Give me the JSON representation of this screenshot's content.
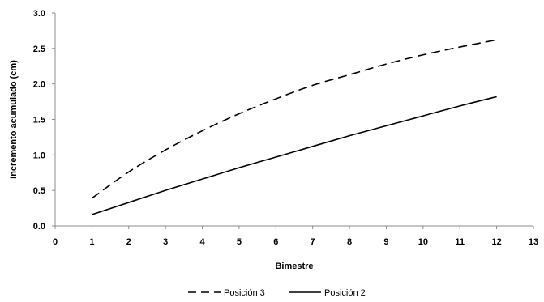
{
  "chart_data": {
    "type": "line",
    "title": "",
    "xlabel": "Bimestre",
    "ylabel": "Incremento acumulado (cm)",
    "xlim": [
      0,
      13
    ],
    "ylim": [
      0,
      3.0
    ],
    "x_ticks": [
      0,
      1,
      2,
      3,
      4,
      5,
      6,
      7,
      8,
      9,
      10,
      11,
      12,
      13
    ],
    "x_tick_labels": [
      "0",
      "1",
      "2",
      "3",
      "4",
      "5",
      "6",
      "7",
      "8",
      "9",
      "10",
      "11",
      "12",
      "13"
    ],
    "y_ticks": [
      0,
      0.5,
      1.0,
      1.5,
      2.0,
      2.5,
      3.0
    ],
    "y_tick_labels": [
      "0.0",
      "0.5",
      "1.0",
      "1.5",
      "2.0",
      "2.5",
      "3.0"
    ],
    "grid": false,
    "legend_position": "bottom",
    "series": [
      {
        "name": "Posición 3",
        "style": "dashed",
        "color": "#000000",
        "x": [
          1,
          2,
          3,
          4,
          5,
          6,
          7,
          8,
          9,
          10,
          11,
          12
        ],
        "y": [
          0.39,
          0.76,
          1.07,
          1.34,
          1.58,
          1.79,
          1.98,
          2.13,
          2.28,
          2.41,
          2.52,
          2.62
        ]
      },
      {
        "name": "Posición 2",
        "style": "solid",
        "color": "#000000",
        "x": [
          1,
          2,
          3,
          4,
          5,
          6,
          7,
          8,
          9,
          10,
          11,
          12
        ],
        "y": [
          0.16,
          0.33,
          0.5,
          0.66,
          0.82,
          0.97,
          1.12,
          1.27,
          1.41,
          1.55,
          1.69,
          1.82
        ]
      }
    ]
  }
}
